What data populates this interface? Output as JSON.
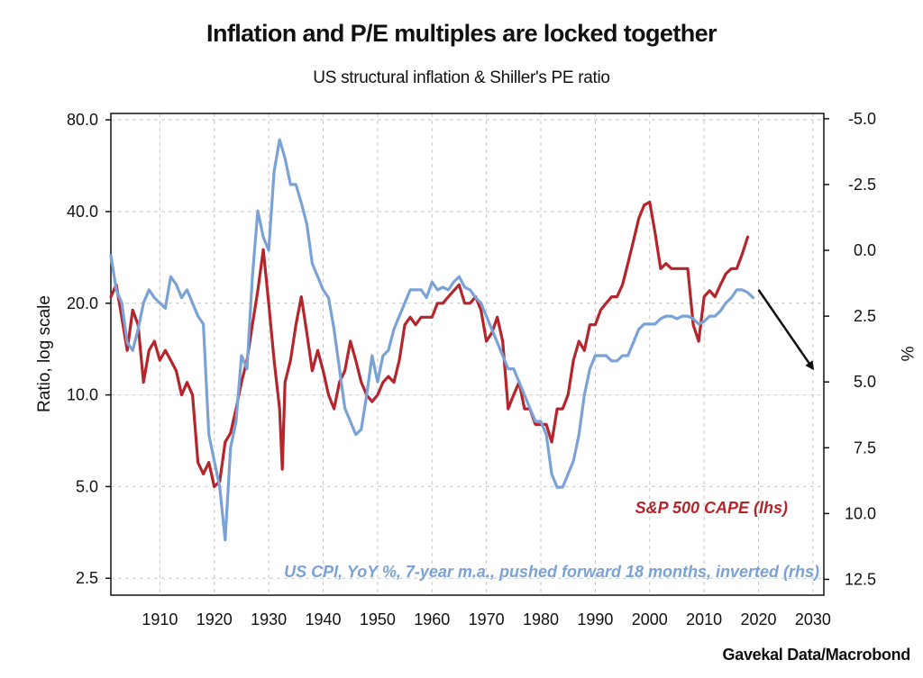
{
  "chart_data": {
    "type": "line",
    "title": "Inflation and P/E multiples are locked together",
    "subtitle": "US structural inflation & Shiller's PE ratio",
    "source": "Gavekal Data/Macrobond",
    "x_axis": {
      "range": [
        1901,
        2032
      ],
      "ticks": [
        1910,
        1920,
        1930,
        1940,
        1950,
        1960,
        1970,
        1980,
        1990,
        2000,
        2010,
        2020,
        2030
      ]
    },
    "y_left": {
      "label": "Ratio, log scale",
      "scale": "log",
      "range": [
        2.2,
        84
      ],
      "ticks": [
        2.5,
        5.0,
        10.0,
        20.0,
        40.0,
        80.0
      ],
      "tick_labels": [
        "2.5",
        "5.0",
        "10.0",
        "20.0",
        "40.0",
        "80.0"
      ]
    },
    "y_right": {
      "label": "%",
      "scale": "linear",
      "inverted": true,
      "range": [
        -5.2,
        13.1
      ],
      "ticks": [
        -5.0,
        -2.5,
        0.0,
        2.5,
        5.0,
        7.5,
        10.0,
        12.5
      ],
      "tick_labels": [
        "-5.0",
        "-2.5",
        "0.0",
        "2.5",
        "5.0",
        "7.5",
        "10.0",
        "12.5"
      ]
    },
    "grid": true,
    "series": [
      {
        "name": "S&P 500 CAPE (lhs)",
        "axis": "left",
        "color": "#b5252c",
        "x": [
          1901,
          1902,
          1903,
          1904,
          1905,
          1906,
          1907,
          1908,
          1909,
          1910,
          1911,
          1912,
          1913,
          1914,
          1915,
          1916,
          1917,
          1918,
          1919,
          1920,
          1921,
          1922,
          1923,
          1924,
          1925,
          1926,
          1927,
          1928,
          1929,
          1930,
          1931,
          1932,
          1932.5,
          1933,
          1934,
          1935,
          1936,
          1937,
          1938,
          1939,
          1940,
          1941,
          1942,
          1943,
          1944,
          1945,
          1946,
          1947,
          1948,
          1949,
          1950,
          1951,
          1952,
          1953,
          1954,
          1955,
          1956,
          1957,
          1958,
          1959,
          1960,
          1961,
          1962,
          1963,
          1964,
          1965,
          1966,
          1967,
          1968,
          1969,
          1970,
          1971,
          1972,
          1973,
          1974,
          1975,
          1976,
          1977,
          1978,
          1979,
          1980,
          1981,
          1982,
          1983,
          1984,
          1985,
          1986,
          1987,
          1988,
          1989,
          1990,
          1991,
          1992,
          1993,
          1994,
          1995,
          1996,
          1997,
          1998,
          1999,
          2000,
          2001,
          2002,
          2003,
          2004,
          2005,
          2006,
          2007,
          2008,
          2009,
          2010,
          2011,
          2012,
          2013,
          2014,
          2015,
          2016,
          2017,
          2018
        ],
        "values": [
          21,
          23,
          18,
          14,
          19,
          17,
          11,
          14,
          15,
          13,
          14,
          13,
          12,
          10,
          11,
          10,
          6,
          5.5,
          6,
          5,
          5.2,
          7,
          7.5,
          9,
          11,
          13,
          17,
          22,
          30,
          20,
          13,
          9,
          5.7,
          11,
          13,
          17,
          21,
          16,
          12,
          14,
          12,
          10,
          9,
          11,
          12,
          15,
          13,
          11,
          10,
          9.5,
          10,
          11,
          11.5,
          11,
          13,
          17,
          18,
          17,
          18,
          18,
          18,
          20,
          20,
          21,
          22,
          23,
          20,
          20,
          21,
          19,
          15,
          16,
          18,
          15,
          9,
          10,
          11,
          9,
          9,
          8,
          8,
          8,
          7,
          9,
          9,
          10,
          13,
          15,
          14,
          17,
          17,
          19,
          20,
          21,
          21,
          23,
          27,
          32,
          38,
          42,
          43,
          34,
          26,
          27,
          26,
          26,
          26,
          26,
          17,
          15,
          21,
          22,
          21,
          23,
          25,
          26,
          26,
          29,
          33
        ]
      },
      {
        "name": "US CPI, YoY %, 7-year m.a., pushed forward 18 months, inverted (rhs)",
        "axis": "right",
        "color": "#7ba2d6",
        "x": [
          1901,
          1902,
          1903,
          1904,
          1905,
          1906,
          1907,
          1908,
          1909,
          1910,
          1911,
          1912,
          1913,
          1914,
          1915,
          1916,
          1917,
          1918,
          1919,
          1920,
          1921,
          1922,
          1923,
          1924,
          1925,
          1926,
          1927,
          1928,
          1929,
          1930,
          1931,
          1932,
          1933,
          1934,
          1935,
          1936,
          1937,
          1938,
          1939,
          1940,
          1941,
          1942,
          1943,
          1944,
          1945,
          1946,
          1947,
          1948,
          1949,
          1950,
          1951,
          1952,
          1953,
          1954,
          1955,
          1956,
          1957,
          1958,
          1959,
          1960,
          1961,
          1962,
          1963,
          1964,
          1965,
          1966,
          1967,
          1968,
          1969,
          1970,
          1971,
          1972,
          1973,
          1974,
          1975,
          1976,
          1977,
          1978,
          1979,
          1980,
          1981,
          1982,
          1983,
          1984,
          1985,
          1986,
          1987,
          1988,
          1989,
          1990,
          1991,
          1992,
          1993,
          1994,
          1995,
          1996,
          1997,
          1998,
          1999,
          2000,
          2001,
          2002,
          2003,
          2004,
          2005,
          2006,
          2007,
          2008,
          2009,
          2010,
          2011,
          2012,
          2013,
          2014,
          2015,
          2016,
          2017,
          2018,
          2019
        ],
        "values": [
          0.2,
          1.5,
          2.0,
          3.5,
          3.8,
          3.0,
          2.0,
          1.5,
          1.8,
          2.0,
          2.2,
          1.0,
          1.3,
          1.8,
          1.5,
          2.0,
          2.5,
          2.8,
          7.0,
          8.0,
          9.0,
          11.0,
          7.5,
          6.5,
          4.0,
          4.5,
          1.0,
          -1.5,
          -0.5,
          0.0,
          -3.0,
          -4.2,
          -3.5,
          -2.5,
          -2.5,
          -1.8,
          -1.0,
          0.5,
          1.0,
          1.5,
          1.8,
          3.0,
          4.5,
          6.0,
          6.5,
          7.0,
          6.8,
          5.5,
          4.0,
          5.0,
          4.0,
          3.8,
          3.0,
          2.5,
          2.0,
          1.5,
          1.5,
          1.5,
          1.8,
          1.2,
          1.5,
          1.4,
          1.5,
          1.2,
          1.0,
          1.4,
          1.5,
          1.8,
          2.0,
          2.5,
          3.0,
          3.5,
          4.0,
          4.5,
          4.5,
          5.0,
          5.5,
          6.0,
          6.5,
          6.5,
          7.0,
          8.5,
          9.0,
          9.0,
          8.5,
          8.0,
          7.0,
          5.5,
          4.5,
          4.0,
          4.0,
          4.0,
          4.2,
          4.2,
          4.0,
          4.0,
          3.5,
          3.0,
          2.8,
          2.8,
          2.8,
          2.6,
          2.5,
          2.5,
          2.6,
          2.5,
          2.5,
          2.6,
          2.8,
          2.7,
          2.5,
          2.5,
          2.3,
          2.0,
          1.8,
          1.5,
          1.5,
          1.6,
          1.8
        ]
      }
    ],
    "annotations": [
      {
        "type": "arrow",
        "description": "projection arrow",
        "from": [
          2020,
          1.5
        ],
        "to": [
          2030,
          4.5
        ],
        "axis": "right",
        "color": "#111111"
      }
    ]
  }
}
